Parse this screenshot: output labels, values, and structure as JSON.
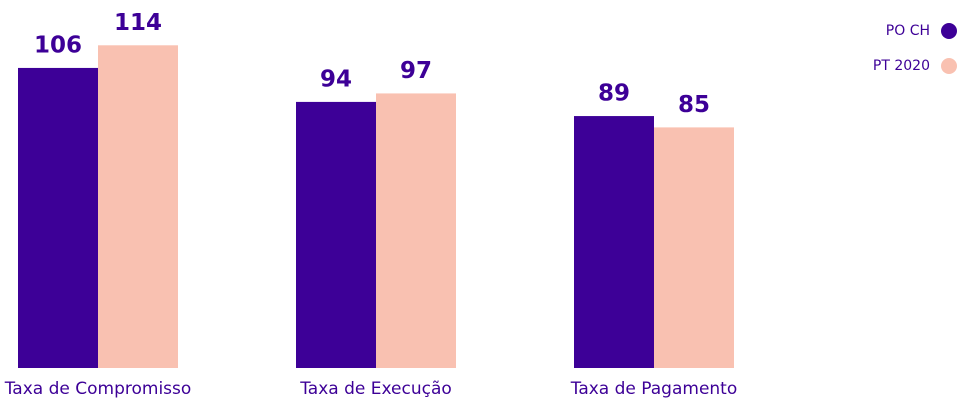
{
  "chart_data": {
    "type": "bar",
    "categories": [
      "Taxa de Compromisso",
      "Taxa de Execução",
      "Taxa de Pagamento"
    ],
    "series": [
      {
        "name": "PO CH",
        "color": "#3d0097",
        "values": [
          106,
          94,
          89
        ]
      },
      {
        "name": "PT 2020",
        "color": "#f9c1b1",
        "values": [
          114,
          97,
          85
        ]
      }
    ],
    "ylim": [
      0,
      130
    ],
    "legend": "top-right"
  }
}
